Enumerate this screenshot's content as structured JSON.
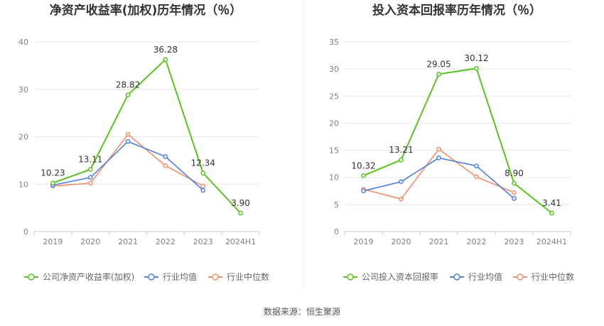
{
  "source": "数据来源：恒生聚源",
  "colors": {
    "company": "#5ac221",
    "industry_avg": "#4f7fe0",
    "industry_median": "#f28e6c",
    "grid": "#e6e6e6",
    "axis": "#c8c8c8"
  },
  "chart_data": [
    {
      "type": "line",
      "title": "净资产收益率(加权)历年情况（％）",
      "categories": [
        "2019",
        "2020",
        "2021",
        "2022",
        "2023",
        "2024H1"
      ],
      "ylim": [
        0,
        40
      ],
      "yticks": [
        0,
        10,
        20,
        30,
        40
      ],
      "grid": true,
      "legend_position": "bottom",
      "series": [
        {
          "name": "公司净资产收益率(加权)",
          "values": [
            10.23,
            13.11,
            28.82,
            36.28,
            12.34,
            3.9
          ],
          "labels": [
            "10.23",
            "13.11",
            "28.82",
            "36.28",
            "12.34",
            "3.90"
          ]
        },
        {
          "name": "行业均值",
          "values": [
            9.8,
            11.4,
            19.0,
            15.8,
            8.7,
            null
          ]
        },
        {
          "name": "行业中位数",
          "values": [
            9.6,
            10.2,
            20.5,
            13.9,
            9.6,
            null
          ]
        }
      ]
    },
    {
      "type": "line",
      "title": "投入资本回报率历年情况（％）",
      "categories": [
        "2019",
        "2020",
        "2021",
        "2022",
        "2023",
        "2024H1"
      ],
      "ylim": [
        0,
        35
      ],
      "yticks": [
        0,
        5,
        10,
        15,
        20,
        25,
        30,
        35
      ],
      "grid": true,
      "legend_position": "bottom",
      "series": [
        {
          "name": "公司投入资本回报率",
          "values": [
            10.32,
            13.21,
            29.05,
            30.12,
            8.9,
            3.41
          ],
          "labels": [
            "10.32",
            "13.21",
            "29.05",
            "30.12",
            "8.90",
            "3.41"
          ]
        },
        {
          "name": "行业均值",
          "values": [
            7.5,
            9.2,
            13.6,
            12.1,
            6.1,
            null
          ]
        },
        {
          "name": "行业中位数",
          "values": [
            7.8,
            6.0,
            15.2,
            10.1,
            7.2,
            null
          ]
        }
      ]
    }
  ]
}
